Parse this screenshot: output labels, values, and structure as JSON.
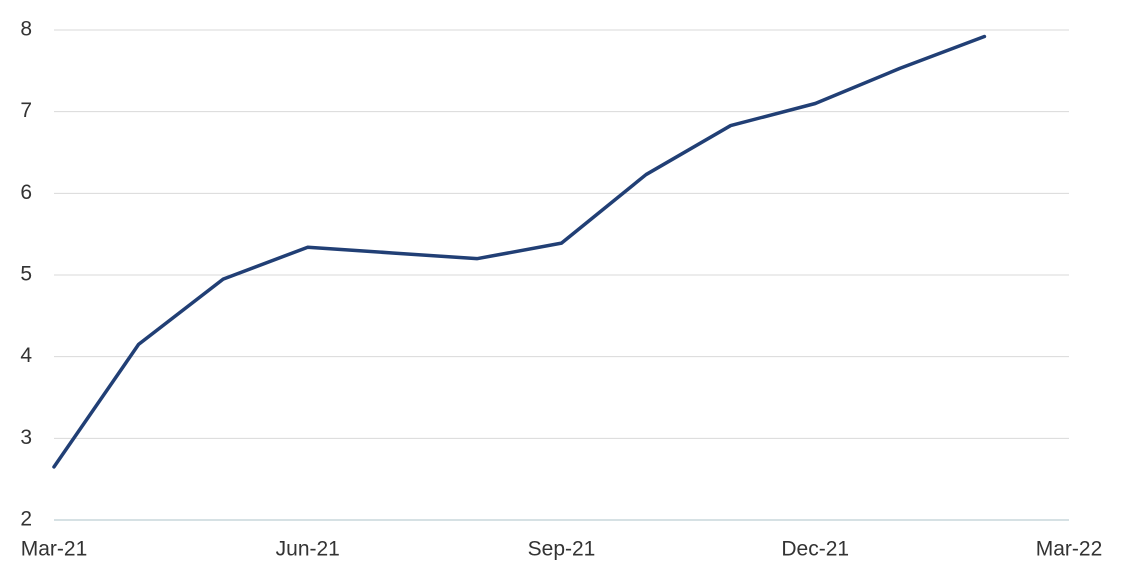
{
  "chart_data": {
    "type": "line",
    "categories": [
      "Mar-21",
      null,
      null,
      "Jun-21",
      null,
      null,
      "Sep-21",
      null,
      null,
      "Dec-21",
      null,
      null,
      "Mar-22"
    ],
    "values": [
      2.65,
      4.15,
      4.95,
      5.34,
      5.27,
      5.2,
      5.39,
      6.23,
      6.83,
      7.1,
      7.53,
      7.92,
      null
    ],
    "color": "#213f75",
    "ylim": [
      2,
      8
    ],
    "yticks": [
      2,
      3,
      4,
      5,
      6,
      7,
      8
    ],
    "grid": true
  }
}
